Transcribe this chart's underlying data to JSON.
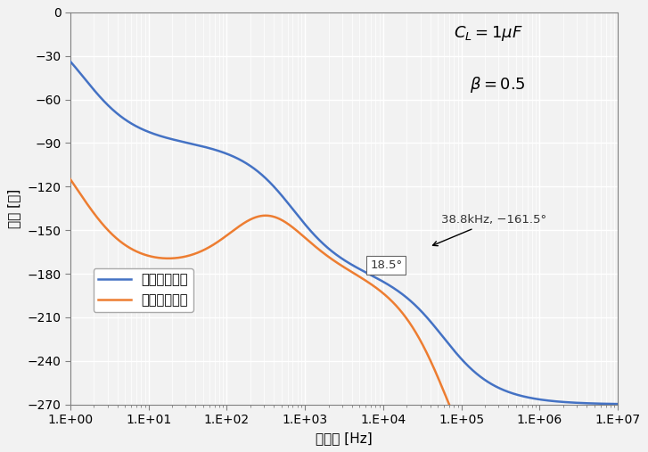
{
  "xlabel": "周波数 [Hz]",
  "ylabel": "位相 [度]",
  "xlim_log": [
    0,
    7
  ],
  "ylim": [
    -270,
    0
  ],
  "yticks": [
    0,
    -30,
    -60,
    -90,
    -120,
    -150,
    -180,
    -210,
    -240,
    -270
  ],
  "xtick_vals": [
    1,
    10,
    100,
    1000,
    10000,
    100000,
    1000000,
    10000000
  ],
  "xtick_labels": [
    "1.E+00",
    "1.E+01",
    "1.E+02",
    "1.E+03",
    "1.E+04",
    "1.E+05",
    "1.E+06",
    "1.E+07"
  ],
  "line_no_lead_color": "#4472C4",
  "line_lead_color": "#ED7D31",
  "legend_labels": [
    "進み回路なし",
    "進み回路あり"
  ],
  "annotation_box_text": "18.5°",
  "annotation_point_text": "38.8kHz, −161.5°",
  "annotation_point_freq": 38800,
  "annotation_point_phase": -161.5,
  "bg_color": "#F2F2F2",
  "plot_bg_color": "#F2F2F2",
  "grid_major_color": "#FFFFFF",
  "grid_minor_color": "#FFFFFF",
  "spine_color": "#808080"
}
